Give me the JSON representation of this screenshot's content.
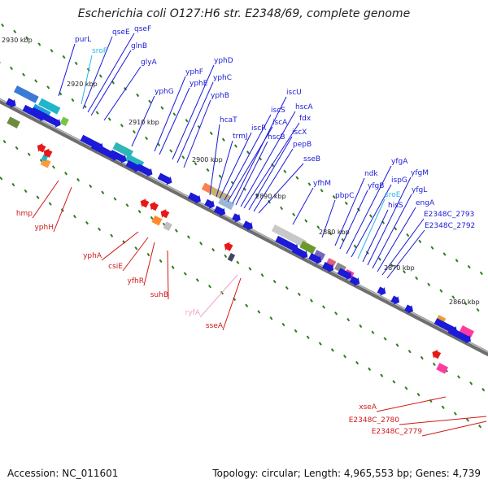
{
  "title": "Escherichia coli O127:H6 str. E2348/69, complete genome",
  "footer": {
    "accession": "Accession: NC_011601",
    "summary": "Topology: circular; Length: 4,965,553 bp; Genes: 4,739"
  },
  "colors": {
    "forward_label": "#1a1ad8",
    "reverse_label": "#d01818",
    "rna_label": "#29b6e8",
    "pink_label": "#f0a0c8"
  },
  "kbp_ticks": [
    "2930 kbp",
    "2920 kbp",
    "2910 kbp",
    "2900 kbp",
    "2890 kbp",
    "2880 kbp",
    "2870 kbp",
    "2860 kbp"
  ],
  "forward_genes": {
    "group1": [
      "purL",
      "sroF",
      "qseE",
      "qseF",
      "glnB",
      "glyA"
    ],
    "group2": [
      "yphG",
      "yphF",
      "yphE",
      "yphD",
      "yphC",
      "yphB"
    ],
    "group3": [
      "hcaT",
      "trmJ",
      "iscR",
      "iscS",
      "iscA",
      "iscU",
      "hscB",
      "hscA",
      "fdx",
      "iscX",
      "pepB",
      "sseB"
    ],
    "group4": [
      "yfhM",
      "pbpC",
      "ndk",
      "yfgB",
      "yfgA",
      "ispG",
      "sroE",
      "hisS",
      "yfgM",
      "yfgL",
      "engA",
      "E2348C_2793",
      "E2348C_2792"
    ]
  },
  "reverse_genes": {
    "group1": [
      "hmp",
      "yphH"
    ],
    "group2": [
      "yphA",
      "csiE",
      "yfhR",
      "suhB"
    ],
    "group3": [
      "ryfA",
      "sseA"
    ],
    "group4": [
      "xseA",
      "E2348C_2780",
      "E2348C_2779"
    ]
  }
}
